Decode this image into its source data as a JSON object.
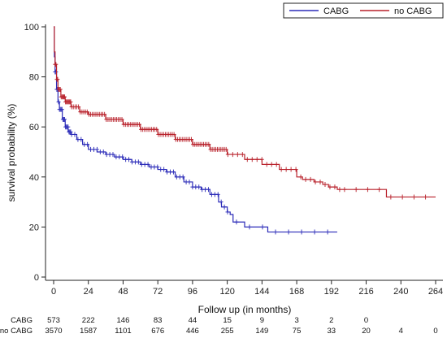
{
  "chart_data": {
    "type": "line",
    "xlabel": "Follow up (in months)",
    "ylabel": "survival probability (%)",
    "xlim": [
      0,
      264
    ],
    "ylim": [
      0,
      100
    ],
    "x_ticks": [
      0,
      24,
      48,
      72,
      96,
      120,
      144,
      168,
      192,
      216,
      240,
      264
    ],
    "y_ticks": [
      0,
      20,
      40,
      60,
      80,
      100
    ],
    "grid": false,
    "legend_position": "top-right",
    "series": [
      {
        "name": "CABG",
        "color": "#2b2bb8",
        "points": [
          [
            0,
            100
          ],
          [
            0.5,
            88
          ],
          [
            1,
            82
          ],
          [
            2,
            75
          ],
          [
            3,
            70
          ],
          [
            4,
            67
          ],
          [
            6,
            63
          ],
          [
            8,
            60
          ],
          [
            10,
            58
          ],
          [
            12,
            57
          ],
          [
            16,
            55
          ],
          [
            20,
            53
          ],
          [
            24,
            51
          ],
          [
            30,
            50
          ],
          [
            36,
            49
          ],
          [
            42,
            48
          ],
          [
            48,
            47
          ],
          [
            54,
            46
          ],
          [
            60,
            45
          ],
          [
            66,
            44
          ],
          [
            72,
            43
          ],
          [
            78,
            42
          ],
          [
            84,
            40
          ],
          [
            90,
            38
          ],
          [
            96,
            36
          ],
          [
            102,
            35
          ],
          [
            108,
            33
          ],
          [
            114,
            30
          ],
          [
            116,
            28
          ],
          [
            120,
            26
          ],
          [
            122,
            25
          ],
          [
            124,
            22
          ],
          [
            130,
            22
          ],
          [
            132,
            20
          ],
          [
            140,
            20
          ],
          [
            148,
            18
          ],
          [
            160,
            18
          ],
          [
            176,
            18
          ],
          [
            196,
            18
          ]
        ]
      },
      {
        "name": "no CABG",
        "color": "#b8202a",
        "points": [
          [
            0,
            100
          ],
          [
            0.5,
            90
          ],
          [
            1,
            85
          ],
          [
            2,
            79
          ],
          [
            3,
            75
          ],
          [
            5,
            72
          ],
          [
            8,
            70
          ],
          [
            12,
            68
          ],
          [
            18,
            66
          ],
          [
            24,
            65
          ],
          [
            36,
            63
          ],
          [
            48,
            61
          ],
          [
            60,
            59
          ],
          [
            72,
            57
          ],
          [
            84,
            55
          ],
          [
            96,
            53
          ],
          [
            108,
            51
          ],
          [
            120,
            49
          ],
          [
            132,
            47
          ],
          [
            144,
            45
          ],
          [
            156,
            43
          ],
          [
            168,
            40
          ],
          [
            172,
            39
          ],
          [
            180,
            38
          ],
          [
            186,
            37
          ],
          [
            190,
            36
          ],
          [
            196,
            35
          ],
          [
            204,
            35
          ],
          [
            216,
            35
          ],
          [
            228,
            35
          ],
          [
            230,
            32
          ],
          [
            240,
            32
          ],
          [
            264,
            32
          ]
        ]
      }
    ],
    "risk_table": {
      "rows": [
        {
          "label": "CABG",
          "values": [
            "573",
            "222",
            "146",
            "83",
            "44",
            "15",
            "9",
            "3",
            "2",
            "0",
            "",
            ""
          ]
        },
        {
          "label": "no CABG",
          "values": [
            "3570",
            "1587",
            "1101",
            "676",
            "446",
            "255",
            "149",
            "75",
            "33",
            "20",
            "4",
            "0"
          ]
        }
      ]
    }
  }
}
